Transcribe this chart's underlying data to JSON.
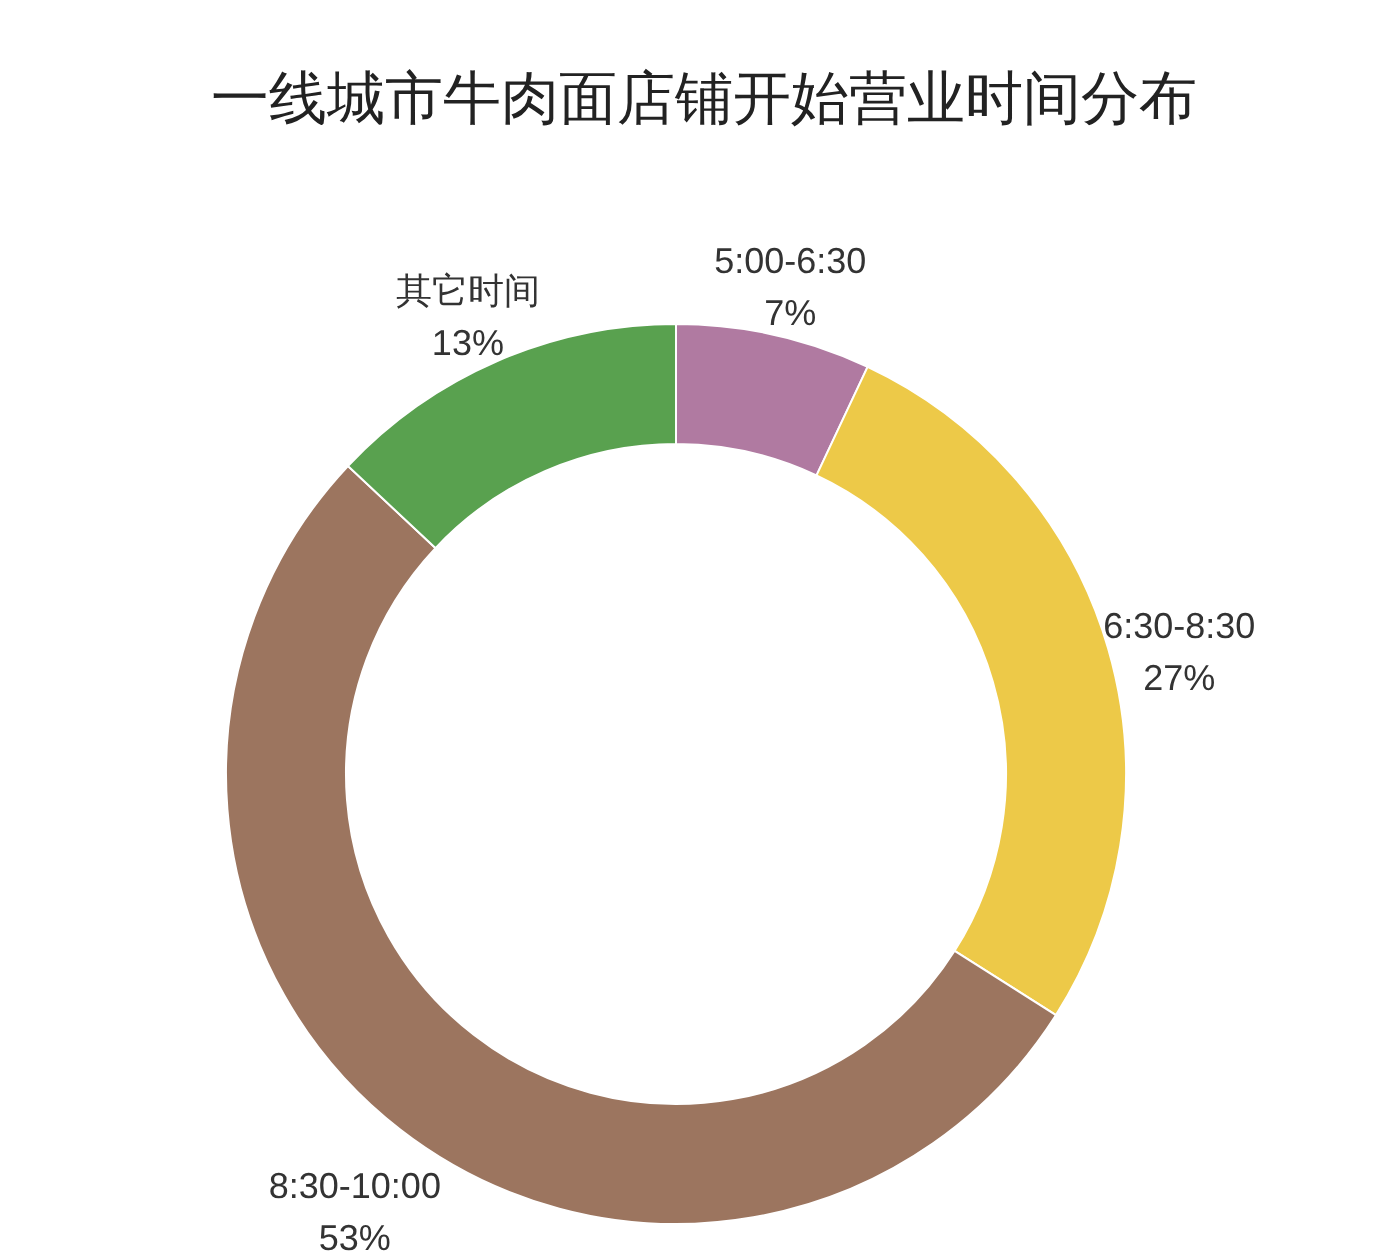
{
  "chart_data": {
    "type": "donut",
    "title": "一线城市牛肉面店铺开始营业时间分布",
    "categories": [
      "5:00-6:30",
      "6:30-8:30",
      "8:30-10:00",
      "其它时间"
    ],
    "values": [
      7,
      27,
      53,
      13
    ],
    "colors": [
      "#b07aa1",
      "#edc948",
      "#9c755f",
      "#59a14f"
    ],
    "value_labels": [
      "7%",
      "27%",
      "53%",
      "13%"
    ]
  }
}
